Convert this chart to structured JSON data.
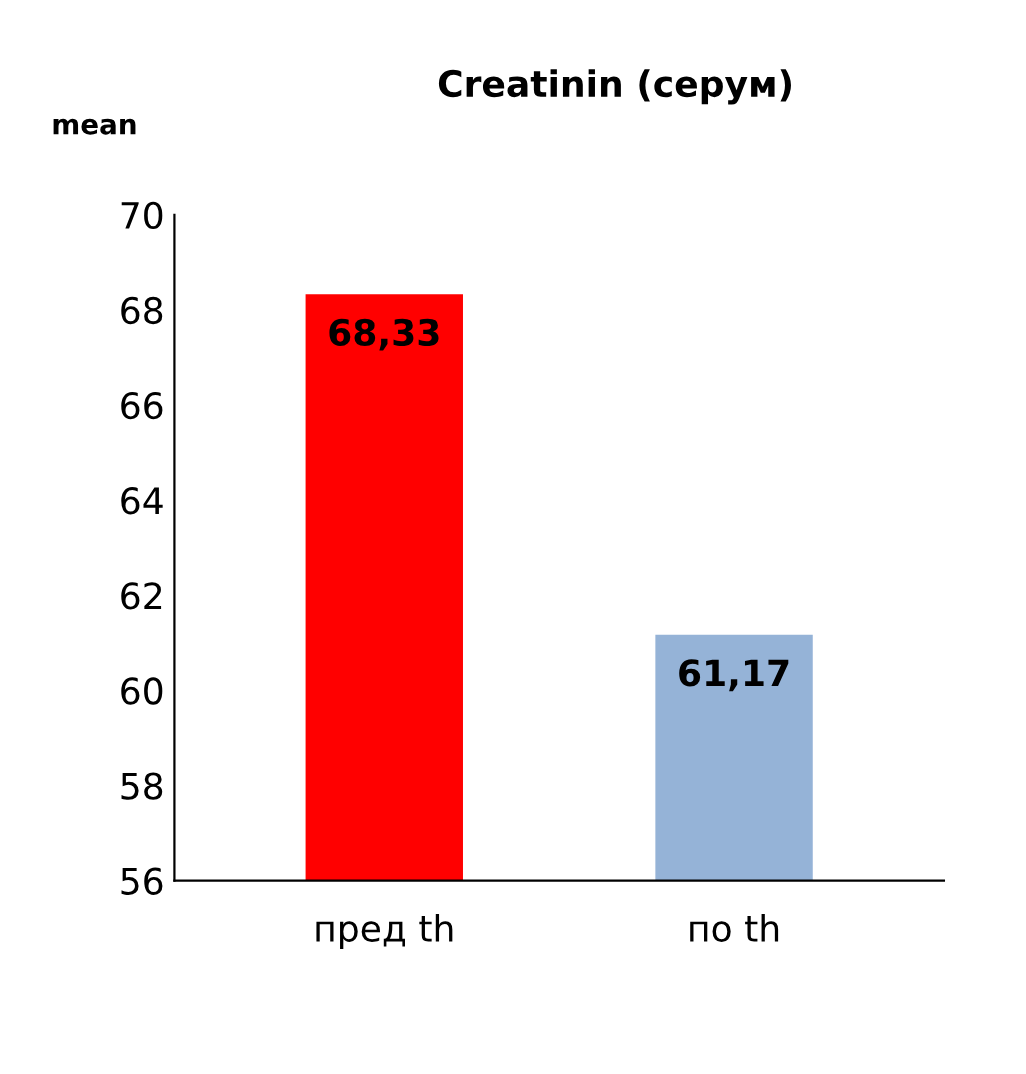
{
  "chart_data": {
    "type": "bar",
    "title": "Creatinin (серум)",
    "ylabel": "mean",
    "categories": [
      "пред th",
      "по th"
    ],
    "values": [
      68.33,
      61.17
    ],
    "colors": [
      "#ff0000",
      "#95b3d7"
    ],
    "value_labels": [
      "68,33",
      "61,17"
    ],
    "ylim": [
      56,
      70
    ],
    "yticks": [
      56,
      58,
      60,
      62,
      64,
      66,
      68,
      70
    ],
    "grid": false
  }
}
